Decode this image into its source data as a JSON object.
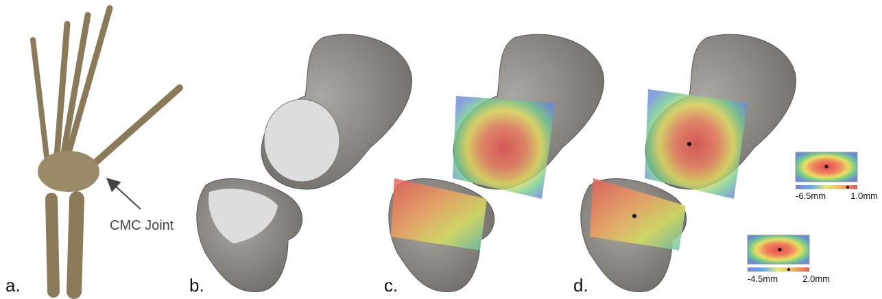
{
  "panels": [
    {
      "label": "a."
    },
    {
      "label": "b."
    },
    {
      "label": "c."
    },
    {
      "label": "d."
    }
  ],
  "annotation": "CMC Joint",
  "colorbars": [
    {
      "min_label": "-6.5mm",
      "max_label": "1.0mm"
    },
    {
      "min_label": "-4.5mm",
      "max_label": "2.0mm"
    }
  ]
}
